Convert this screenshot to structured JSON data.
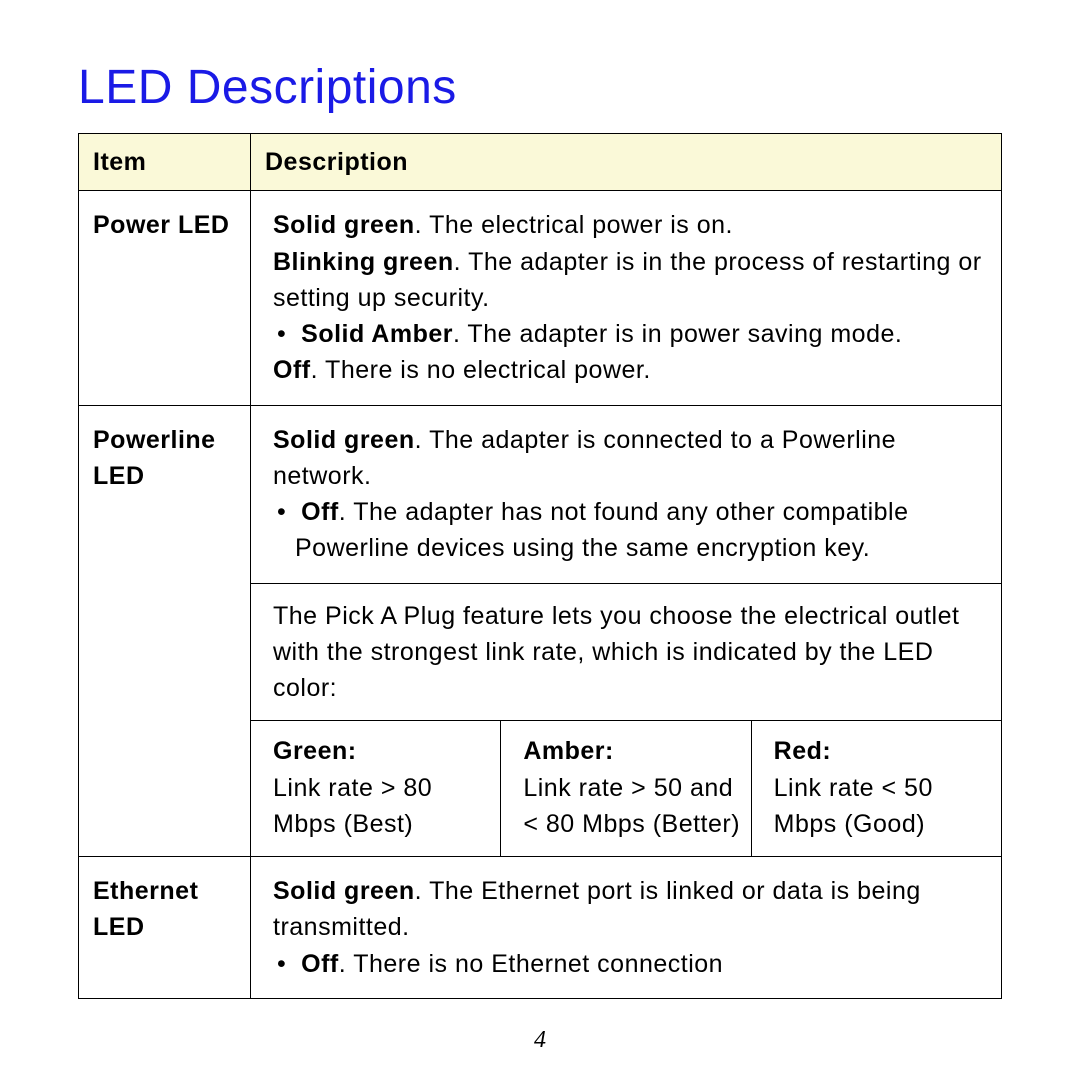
{
  "title": "LED Descriptions",
  "page_number": "4",
  "colors": {
    "title": "#1a1ae6",
    "header_bg": "#faf9d8",
    "border": "#000000",
    "text": "#000000",
    "background": "#ffffff"
  },
  "table": {
    "headers": {
      "item": "Item",
      "description": "Description"
    },
    "power": {
      "item": "Power LED",
      "l1_bold": "Solid green",
      "l1_rest": ". The electrical power is on.",
      "l2_bold": "Blinking green",
      "l2_rest": ". The adapter is in the process of restarting or setting up security.",
      "b1_bold": "Solid Amber",
      "b1_rest": ". The adapter is in power saving mode.",
      "l3_bold": "Off",
      "l3_rest": ". There is no electrical power."
    },
    "powerline": {
      "item": "Powerline LED",
      "l1_bold": "Solid green",
      "l1_rest": ". The adapter is connected to a Powerline network.",
      "b1_bold": "Off",
      "b1_rest": ". The adapter has not found any other compatible Powerline devices using the same encryption key.",
      "note": "The Pick A Plug feature lets you choose the electrical outlet with the strongest link rate, which is indicated by the LED color:",
      "rates": {
        "green_label": "Green",
        "green_text": "Link rate > 80 Mbps (Best)",
        "amber_label": "Amber",
        "amber_text": "Link rate > 50 and < 80 Mbps (Better)",
        "red_label": "Red",
        "red_text": "Link rate < 50 Mbps (Good)"
      }
    },
    "ethernet": {
      "item": "Ethernet LED",
      "l1_bold": "Solid green",
      "l1_rest": ". The Ethernet port is linked or data is being transmitted.",
      "b1_bold": "Off",
      "b1_rest": ". There is no Ethernet connection"
    }
  }
}
